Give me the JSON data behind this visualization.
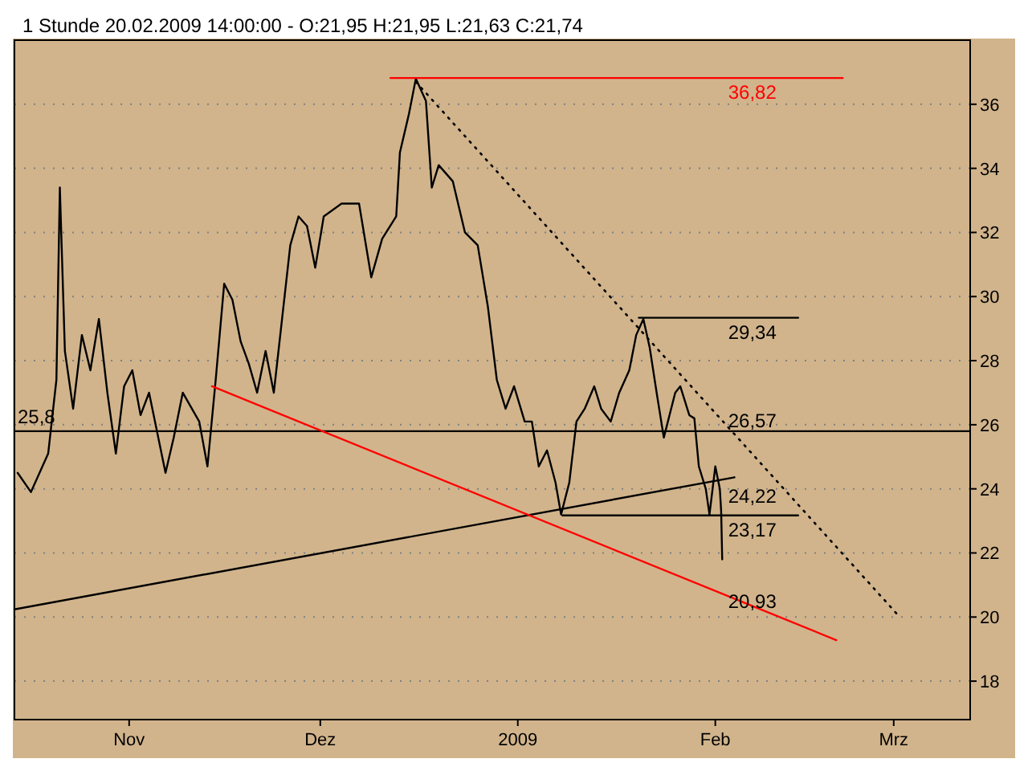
{
  "chart_data": {
    "type": "line",
    "title": "1 Stunde 20.02.2009 14:00:00 - O:21,95 H:21,95 L:21,63 C:21,74",
    "xlim": [
      "2008-10-14T00:00",
      "2009-03-13T00:00"
    ],
    "xticks": [
      {
        "value": "2008-11-01T00:00",
        "label": "Nov"
      },
      {
        "value": "2008-12-01T00:00",
        "label": "Dez"
      },
      {
        "value": "2009-01-01T00:00",
        "label": "2009"
      },
      {
        "value": "2009-02-01T00:00",
        "label": "Feb"
      },
      {
        "value": "2009-03-01T00:00",
        "label": "Mrz"
      }
    ],
    "ylim": [
      16.8,
      38
    ],
    "yticks": [
      18,
      20,
      22,
      24,
      26,
      28,
      30,
      32,
      34,
      36
    ],
    "grid": "y",
    "series": [
      {
        "color": "#000000",
        "x": [
          "2008-10-14T12:00",
          "2008-10-16T14:00",
          "2008-10-19T07:00",
          "2008-10-20T14:00",
          "2008-10-21T03:00",
          "2008-10-21T22:00",
          "2008-10-23T05:00",
          "2008-10-24T14:00",
          "2008-10-25T22:00",
          "2008-10-27T06:00",
          "2008-10-28T14:00",
          "2008-10-29T22:00",
          "2008-10-31T05:00",
          "2008-11-01T12:00",
          "2008-11-02T19:00",
          "2008-11-04T03:00",
          "2008-11-06T17:00",
          "2008-11-08T00:00",
          "2008-11-09T10:00",
          "2008-11-12T00:00",
          "2008-11-13T07:00",
          "2008-11-14T14:00",
          "2008-11-15T22:00",
          "2008-11-17T05:00",
          "2008-11-18T12:00",
          "2008-11-19T19:00",
          "2008-11-21T02:00",
          "2008-11-22T10:00",
          "2008-11-23T17:00",
          "2008-11-25T00:00",
          "2008-11-26T07:00",
          "2008-11-27T14:00",
          "2008-11-28T22:00",
          "2008-11-30T05:00",
          "2008-12-01T13:00",
          "2008-12-04T08:00",
          "2008-12-07T02:00",
          "2008-12-09T00:00",
          "2008-12-10T17:00",
          "2008-12-12T22:00",
          "2008-12-13T12:00",
          "2008-12-14T22:00",
          "2008-12-16T00:00",
          "2008-12-17T14:00",
          "2008-12-18T12:00",
          "2008-12-19T14:00",
          "2008-12-21T19:00",
          "2008-12-23T17:00",
          "2008-12-25T17:00",
          "2008-12-27T07:00",
          "2008-12-28T17:00",
          "2008-12-30T02:00",
          "2008-12-31T10:00",
          "2009-01-02T02:00",
          "2009-01-03T05:00",
          "2009-01-04T07:00",
          "2009-01-05T14:00",
          "2009-01-06T22:00",
          "2009-01-07T19:00",
          "2009-01-09T02:00",
          "2009-01-10T05:00",
          "2009-01-11T12:00",
          "2009-01-13T00:00",
          "2009-01-14T02:00",
          "2009-01-15T14:00",
          "2009-01-16T22:00",
          "2009-01-18T12:00",
          "2009-01-19T14:00",
          "2009-01-20T17:00",
          "2009-01-21T17:00",
          "2009-01-22T19:00",
          "2009-01-23T22:00",
          "2009-01-25T17:00",
          "2009-01-26T12:00",
          "2009-01-27T22:00",
          "2009-01-28T17:00",
          "2009-01-29T10:00",
          "2009-01-30T12:00",
          "2009-01-31T02:00",
          "2009-02-01T00:00",
          "2009-02-01T17:00",
          "2009-02-01T22:00",
          "2009-02-02T02:00"
        ],
        "values": [
          24.5,
          23.9,
          25.1,
          27.4,
          33.4,
          28.3,
          26.5,
          28.8,
          27.7,
          29.3,
          27.0,
          25.1,
          27.2,
          27.7,
          26.3,
          27.0,
          24.5,
          25.6,
          27.0,
          26.1,
          24.7,
          27.4,
          30.4,
          29.9,
          28.6,
          27.9,
          27.0,
          28.3,
          27.0,
          29.3,
          31.6,
          32.5,
          32.2,
          30.9,
          32.5,
          32.9,
          32.9,
          30.6,
          31.8,
          32.5,
          34.5,
          35.7,
          36.8,
          36.1,
          33.4,
          34.1,
          33.6,
          32.0,
          31.6,
          29.7,
          27.4,
          26.5,
          27.2,
          26.1,
          26.1,
          24.7,
          25.2,
          24.2,
          23.2,
          24.2,
          26.1,
          26.5,
          27.2,
          26.5,
          26.1,
          27.0,
          27.7,
          28.8,
          29.3,
          28.4,
          27.0,
          25.6,
          27.0,
          27.2,
          26.3,
          26.2,
          24.7,
          24.0,
          23.2,
          24.7,
          24.0,
          23.3,
          21.8
        ]
      },
      {
        "color": "#ff0000",
        "x": [
          "2008-12-12T00:00",
          "2009-02-21T00:00"
        ],
        "values": [
          36.82,
          36.82
        ]
      },
      {
        "color": "#000000",
        "x": [
          "2009-01-20T00:00",
          "2009-02-14T00:00"
        ],
        "values": [
          29.34,
          29.34
        ]
      },
      {
        "color": "#000000",
        "x": [
          "2009-01-08T00:00",
          "2009-02-14T00:00"
        ],
        "values": [
          23.17,
          23.17
        ]
      },
      {
        "color": "#000000",
        "x": [
          "2008-10-14T00:00",
          "2009-02-04T00:00"
        ],
        "values": [
          20.24,
          24.36
        ]
      },
      {
        "color": "#ff0000",
        "x": [
          "2008-11-14T00:00",
          "2009-02-20T00:00"
        ],
        "values": [
          27.2,
          19.28
        ]
      },
      {
        "color": "#000000",
        "line_style": "dotted",
        "x": [
          "2008-12-16T00:00",
          "2009-03-01T12:00"
        ],
        "values": [
          36.7,
          20.1
        ]
      }
    ],
    "ref_lines": [
      {
        "axis": "y",
        "value": 25.8,
        "label": "25,8",
        "color": "#000000"
      }
    ],
    "annotations": [
      {
        "text": "36,82",
        "x": "2009-01-31T00:00",
        "y": 36.82
      },
      {
        "text": "29,34",
        "x": "2009-01-31T00:00",
        "y": 29.34
      },
      {
        "text": "26,57",
        "x": "2009-01-31T00:00",
        "y": 26.57
      },
      {
        "text": "24,22",
        "x": "2009-01-31T00:00",
        "y": 24.22
      },
      {
        "text": "23,17",
        "x": "2009-01-31T00:00",
        "y": 23.17
      },
      {
        "text": "20,93",
        "x": "2009-01-31T00:00",
        "y": 20.93
      }
    ]
  }
}
